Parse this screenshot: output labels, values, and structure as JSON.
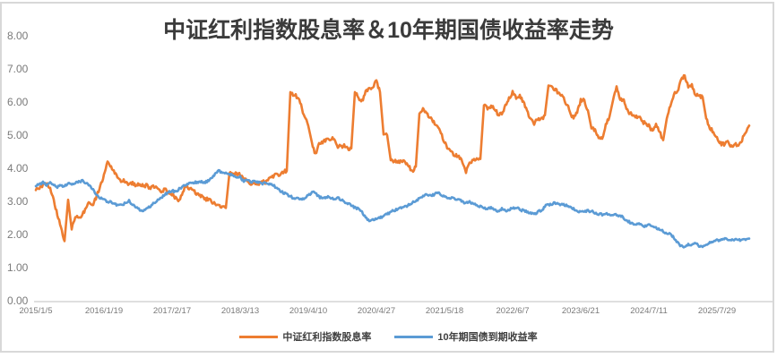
{
  "chart_data": {
    "type": "line",
    "title": "中证红利指数股息率＆10年期国债收益率走势",
    "ylim": [
      0,
      8
    ],
    "y_tick_labels": [
      "8.00",
      "7.00",
      "6.00",
      "5.00",
      "4.00",
      "3.00",
      "2.00",
      "1.00",
      "0.00"
    ],
    "x_tick_labels": [
      "2015/1/5",
      "2016/1/19",
      "2017/2/17",
      "2018/3/13",
      "2019/4/10",
      "2020/4/27",
      "2021/5/18",
      "2022/6/7",
      "2023/6/21",
      "2024/7/11",
      "2025/7/29"
    ],
    "grid": false,
    "legend_position": "bottom",
    "axis_color": "#bfbfbf",
    "series": [
      {
        "name": "中证红利指数股息率",
        "color": "#ED7D31",
        "values": [
          3.35,
          3.42,
          3.5,
          3.55,
          3.38,
          3.05,
          2.6,
          2.25,
          1.8,
          3.05,
          2.15,
          2.55,
          2.5,
          2.6,
          2.78,
          2.98,
          2.92,
          3.15,
          3.5,
          3.8,
          4.2,
          4.05,
          3.85,
          3.68,
          3.62,
          3.6,
          3.52,
          3.56,
          3.48,
          3.53,
          3.45,
          3.49,
          3.41,
          3.45,
          3.36,
          3.3,
          3.35,
          3.28,
          3.22,
          3.1,
          3.02,
          3.28,
          3.5,
          3.38,
          3.31,
          3.23,
          3.17,
          3.11,
          3.05,
          2.99,
          2.93,
          2.88,
          2.84,
          2.8,
          3.85,
          3.8,
          3.86,
          3.79,
          3.7,
          3.58,
          3.5,
          3.58,
          3.49,
          3.6,
          3.56,
          3.69,
          3.74,
          3.81,
          3.8,
          3.88,
          3.92,
          6.3,
          6.22,
          6.15,
          5.9,
          5.55,
          5.28,
          4.78,
          4.42,
          4.75,
          4.78,
          4.85,
          4.89,
          4.9,
          4.66,
          4.66,
          4.7,
          4.6,
          4.6,
          6.3,
          6.12,
          6.03,
          6.3,
          6.45,
          6.42,
          6.65,
          6.3,
          5.02,
          5.0,
          4.24,
          4.23,
          4.19,
          4.24,
          4.18,
          4.08,
          3.9,
          4.05,
          5.65,
          5.79,
          5.67,
          5.53,
          5.39,
          5.25,
          5.07,
          4.79,
          4.55,
          4.5,
          4.39,
          4.35,
          4.19,
          3.89,
          4.16,
          4.28,
          4.3,
          4.28,
          5.9,
          5.82,
          5.86,
          5.81,
          5.61,
          5.66,
          5.9,
          6.1,
          6.3,
          6.12,
          6.2,
          6.0,
          5.75,
          5.5,
          5.32,
          5.5,
          5.48,
          5.6,
          6.5,
          6.45,
          6.36,
          6.26,
          6.16,
          5.95,
          5.7,
          5.5,
          5.68,
          6.05,
          6.05,
          5.75,
          5.2,
          5.15,
          4.95,
          4.92,
          5.3,
          5.55,
          6.05,
          6.45,
          6.1,
          6.05,
          5.75,
          5.65,
          5.55,
          5.55,
          5.45,
          5.35,
          5.3,
          5.1,
          5.3,
          5.1,
          4.85,
          5.5,
          5.9,
          6.25,
          6.3,
          6.7,
          6.8,
          6.45,
          6.5,
          6.2,
          6.2,
          6.15,
          5.5,
          5.2,
          5.1,
          4.95,
          4.75,
          4.72,
          4.78,
          4.68,
          4.73,
          4.66,
          4.85,
          5.1,
          5.27
        ]
      },
      {
        "name": "10年期国债到期收益率",
        "color": "#5B9BD5",
        "values": [
          3.45,
          3.52,
          3.57,
          3.5,
          3.56,
          3.48,
          3.42,
          3.5,
          3.45,
          3.55,
          3.5,
          3.55,
          3.6,
          3.62,
          3.55,
          3.5,
          3.35,
          3.2,
          3.1,
          3.05,
          3.0,
          2.98,
          2.92,
          2.88,
          2.9,
          2.95,
          3.02,
          2.9,
          2.82,
          2.75,
          2.7,
          2.78,
          2.85,
          2.95,
          3.05,
          3.12,
          3.2,
          3.28,
          3.32,
          3.3,
          3.38,
          3.45,
          3.52,
          3.56,
          3.55,
          3.58,
          3.6,
          3.56,
          3.62,
          3.7,
          3.82,
          3.92,
          3.85,
          3.88,
          3.82,
          3.8,
          3.74,
          3.74,
          3.6,
          3.66,
          3.55,
          3.62,
          3.58,
          3.52,
          3.58,
          3.52,
          3.5,
          3.42,
          3.33,
          3.26,
          3.22,
          3.16,
          3.1,
          3.09,
          3.07,
          3.1,
          3.18,
          3.28,
          3.25,
          3.14,
          3.07,
          3.13,
          3.12,
          3.07,
          3.11,
          3.06,
          3.0,
          2.93,
          2.87,
          2.81,
          2.77,
          2.67,
          2.52,
          2.43,
          2.46,
          2.46,
          2.51,
          2.57,
          2.63,
          2.68,
          2.72,
          2.76,
          2.8,
          2.84,
          2.9,
          2.96,
          3.02,
          3.1,
          3.15,
          3.2,
          3.22,
          3.18,
          3.26,
          3.2,
          3.15,
          3.1,
          3.12,
          3.08,
          3.05,
          3.0,
          2.95,
          3.0,
          2.92,
          2.88,
          2.85,
          2.8,
          2.78,
          2.82,
          2.76,
          2.7,
          2.78,
          2.72,
          2.75,
          2.78,
          2.82,
          2.75,
          2.72,
          2.68,
          2.65,
          2.62,
          2.68,
          2.72,
          2.85,
          2.9,
          2.92,
          2.95,
          2.92,
          2.9,
          2.88,
          2.85,
          2.78,
          2.72,
          2.7,
          2.68,
          2.72,
          2.7,
          2.65,
          2.62,
          2.6,
          2.64,
          2.6,
          2.56,
          2.6,
          2.56,
          2.5,
          2.4,
          2.35,
          2.3,
          2.32,
          2.28,
          2.25,
          2.3,
          2.26,
          2.2,
          2.15,
          2.1,
          2.05,
          2.0,
          1.9,
          1.75,
          1.65,
          1.62,
          1.7,
          1.68,
          1.72,
          1.65,
          1.62,
          1.68,
          1.75,
          1.8,
          1.85,
          1.82,
          1.88,
          1.85,
          1.82,
          1.85,
          1.82,
          1.86,
          1.84,
          1.85
        ]
      }
    ]
  }
}
